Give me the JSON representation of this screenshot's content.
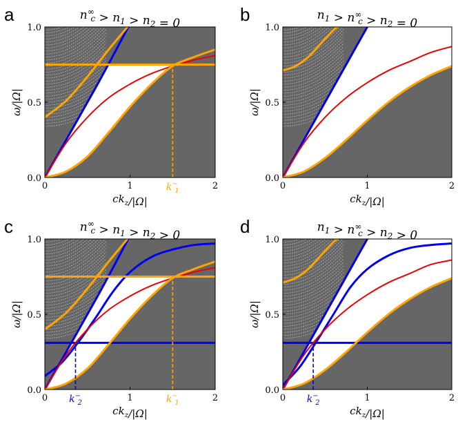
{
  "colors": {
    "continuum": "#666666",
    "blue": "#0000ee",
    "red": "#ee0000",
    "orange": "#ffa500"
  },
  "chart_data": [
    {
      "panel": "a",
      "type": "line",
      "title": "n_c^∞ > n_1 > n_2 = 0",
      "xlabel": "ck_z/|Ω|",
      "ylabel": "ω/|Ω|",
      "xlim": [
        0,
        2
      ],
      "ylim": [
        0,
        1
      ],
      "xticks": [
        "0",
        "1",
        "2"
      ],
      "yticks": [
        "0.0",
        "0.5",
        "1.0"
      ],
      "series": [
        {
          "color": "blue",
          "x": [
            0,
            0.6,
            0.98
          ],
          "y": [
            0,
            0.6,
            1.0
          ]
        },
        {
          "color": "red",
          "x": [
            0,
            0.25,
            0.5,
            0.75,
            1.0,
            1.25,
            1.5,
            1.75,
            2.0
          ],
          "y": [
            0,
            0.23,
            0.4,
            0.53,
            0.62,
            0.69,
            0.74,
            0.78,
            0.81
          ]
        },
        {
          "color": "orange",
          "x": [
            0,
            0.25,
            0.5,
            0.75,
            1.0,
            1.25,
            1.5,
            1.75,
            2.0
          ],
          "y": [
            0,
            0.04,
            0.14,
            0.3,
            0.47,
            0.62,
            0.74,
            0.8,
            0.85
          ]
        },
        {
          "color": "orange",
          "x": [
            0,
            0.25,
            0.5,
            0.75,
            1.0
          ],
          "y": [
            0.4,
            0.51,
            0.67,
            0.85,
            1.02
          ]
        },
        {
          "color": "orange",
          "x": [
            0,
            2
          ],
          "y": [
            0.75,
            0.75
          ]
        }
      ],
      "vlines": [
        {
          "x": 1.5,
          "color": "orange",
          "label": "k_1^−"
        }
      ]
    },
    {
      "panel": "b",
      "type": "line",
      "title": "n_1 > n_c^∞ > n_2 = 0",
      "xlabel": "ck_z/|Ω|",
      "ylabel": "ω/|Ω|",
      "xlim": [
        0,
        2
      ],
      "ylim": [
        0,
        1
      ],
      "xticks": [
        "0",
        "1",
        "2"
      ],
      "yticks": [
        "0.0",
        "0.5",
        "1.0"
      ],
      "series": [
        {
          "color": "blue",
          "x": [
            0,
            1.0
          ],
          "y": [
            0,
            1.0
          ]
        },
        {
          "color": "red",
          "x": [
            0,
            0.25,
            0.5,
            0.75,
            1.0,
            1.25,
            1.5,
            1.75,
            2.0
          ],
          "y": [
            0,
            0.23,
            0.4,
            0.53,
            0.63,
            0.71,
            0.77,
            0.83,
            0.87
          ]
        },
        {
          "color": "orange",
          "x": [
            0,
            0.25,
            0.5,
            0.75,
            1.0,
            1.25,
            1.5,
            1.75,
            2.0
          ],
          "y": [
            0,
            0.04,
            0.13,
            0.25,
            0.38,
            0.5,
            0.6,
            0.68,
            0.74
          ]
        },
        {
          "color": "orange",
          "x": [
            0,
            0.15,
            0.3,
            0.45,
            0.6,
            0.65
          ],
          "y": [
            0.71,
            0.74,
            0.8,
            0.89,
            0.98,
            1.0
          ]
        }
      ],
      "vlines": []
    },
    {
      "panel": "c",
      "type": "line",
      "title": "n_c^∞ > n_1 > n_2 > 0",
      "xlabel": "ck_z/|Ω|",
      "ylabel": "ω/|Ω|",
      "xlim": [
        0,
        2
      ],
      "ylim": [
        0,
        1
      ],
      "xticks": [
        "0",
        "1",
        "2"
      ],
      "yticks": [
        "0.0",
        "0.5",
        "1.0"
      ],
      "series": [
        {
          "color": "blue",
          "x": [
            0,
            0.6,
            0.98
          ],
          "y": [
            0,
            0.6,
            1.0
          ]
        },
        {
          "color": "blue",
          "x": [
            0,
            0.2,
            0.4,
            0.6,
            0.8,
            1.0,
            1.25,
            1.5,
            1.75,
            2.0
          ],
          "y": [
            0.09,
            0.18,
            0.32,
            0.48,
            0.65,
            0.78,
            0.88,
            0.93,
            0.96,
            0.97
          ]
        },
        {
          "color": "blue",
          "x": [
            0,
            2
          ],
          "y": [
            0.31,
            0.31
          ]
        },
        {
          "color": "red",
          "x": [
            0,
            0.25,
            0.5,
            0.75,
            1.0,
            1.25,
            1.5,
            1.75,
            2.0
          ],
          "y": [
            0,
            0.23,
            0.4,
            0.53,
            0.62,
            0.69,
            0.74,
            0.78,
            0.81
          ]
        },
        {
          "color": "orange",
          "x": [
            0,
            0.25,
            0.5,
            0.75,
            1.0,
            1.25,
            1.5,
            1.75,
            2.0
          ],
          "y": [
            0,
            0.04,
            0.14,
            0.3,
            0.47,
            0.62,
            0.74,
            0.8,
            0.85
          ]
        },
        {
          "color": "orange",
          "x": [
            0,
            0.25,
            0.5,
            0.75,
            1.0
          ],
          "y": [
            0.4,
            0.51,
            0.67,
            0.85,
            1.02
          ]
        },
        {
          "color": "orange",
          "x": [
            0,
            2
          ],
          "y": [
            0.75,
            0.75
          ]
        }
      ],
      "vlines": [
        {
          "x": 0.36,
          "color": "blue",
          "label": "k_2^−"
        },
        {
          "x": 1.5,
          "color": "orange",
          "label": "k_1^−"
        }
      ]
    },
    {
      "panel": "d",
      "type": "line",
      "title": "n_1 > n_c^∞ > n_2 > 0",
      "xlabel": "ck_z/|Ω|",
      "ylabel": "ω/|Ω|",
      "xlim": [
        0,
        2
      ],
      "ylim": [
        0,
        1
      ],
      "xticks": [
        "0",
        "1",
        "2"
      ],
      "yticks": [
        "0.0",
        "0.5",
        "1.0"
      ],
      "series": [
        {
          "color": "blue",
          "x": [
            0,
            1.0
          ],
          "y": [
            0,
            1.0
          ]
        },
        {
          "color": "blue",
          "x": [
            0,
            0.2,
            0.4,
            0.6,
            0.8,
            1.0,
            1.25,
            1.5,
            1.75,
            2.0
          ],
          "y": [
            0.03,
            0.15,
            0.32,
            0.5,
            0.68,
            0.8,
            0.89,
            0.94,
            0.96,
            0.97
          ]
        },
        {
          "color": "blue",
          "x": [
            0,
            2
          ],
          "y": [
            0.31,
            0.31
          ]
        },
        {
          "color": "red",
          "x": [
            0,
            0.25,
            0.5,
            0.75,
            1.0,
            1.25,
            1.5,
            1.75,
            2.0
          ],
          "y": [
            0,
            0.23,
            0.4,
            0.53,
            0.63,
            0.71,
            0.77,
            0.83,
            0.86
          ]
        },
        {
          "color": "orange",
          "x": [
            0,
            0.25,
            0.5,
            0.75,
            1.0,
            1.25,
            1.5,
            1.75,
            2.0
          ],
          "y": [
            0,
            0.04,
            0.13,
            0.25,
            0.38,
            0.5,
            0.6,
            0.68,
            0.74
          ]
        },
        {
          "color": "orange",
          "x": [
            0,
            0.15,
            0.3,
            0.45,
            0.6,
            0.65
          ],
          "y": [
            0.71,
            0.74,
            0.8,
            0.89,
            0.98,
            1.0
          ]
        }
      ],
      "vlines": [
        {
          "x": 0.36,
          "color": "blue",
          "label": "k_2^−"
        }
      ]
    }
  ]
}
